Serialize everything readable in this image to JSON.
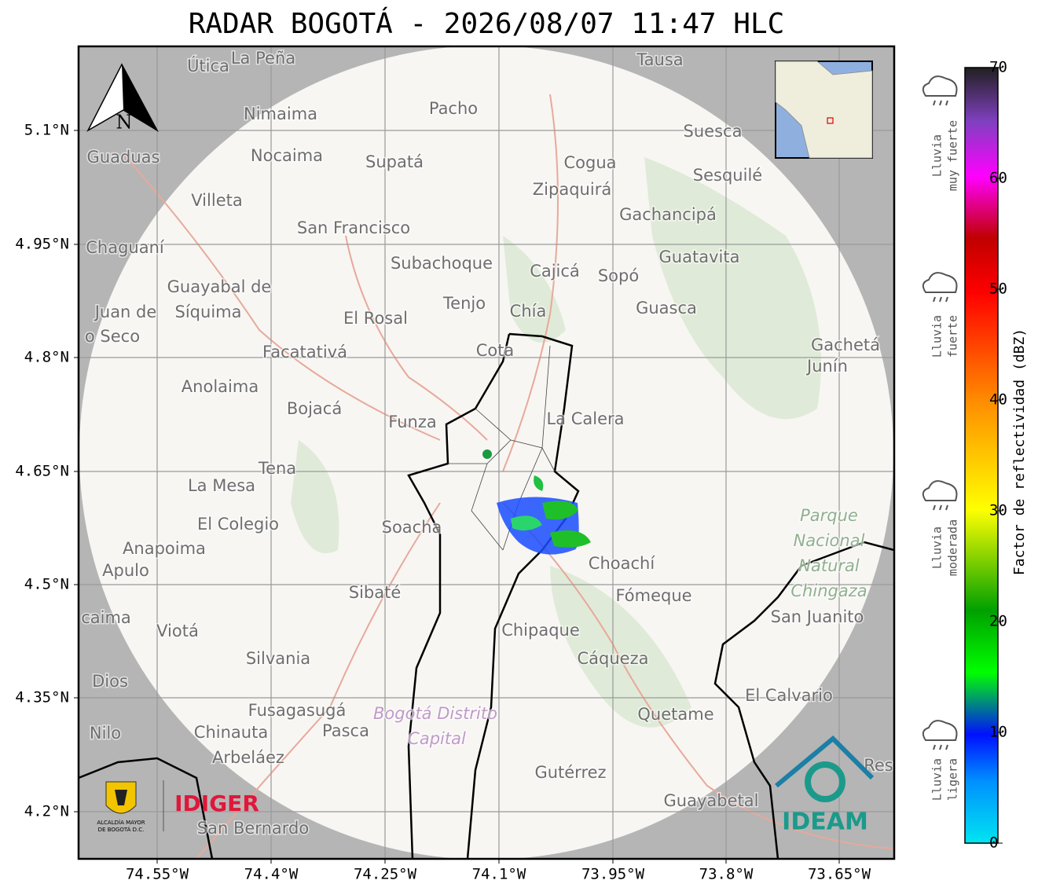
{
  "header": {
    "title": "RADAR BOGOTÁ - 2026/08/07 11:47 HLC"
  },
  "axes": {
    "lat_labels": [
      "5.1°N",
      "4.95°N",
      "4.8°N",
      "4.65°N",
      "4.5°N",
      "4.35°N",
      "4.2°N"
    ],
    "lon_labels": [
      "74.55°W",
      "74.4°W",
      "74.25°W",
      "74.1°W",
      "73.95°W",
      "73.8°W",
      "73.65°W"
    ]
  },
  "north_arrow": "N",
  "places": [
    "Útica",
    "La Peña",
    "Tausa",
    "Pacho",
    "Nimaima",
    "Suesca",
    "Guaduas",
    "Nocaima",
    "Supatá",
    "Cogua",
    "Sesquilé",
    "Zipaquirá",
    "Villeta",
    "Gachancipá",
    "San Francisco",
    "Chaguaní",
    "Guatavita",
    "Subachoque",
    "Cajicá",
    "Sopó",
    "Guayabal de",
    "Síquima",
    "Juan de",
    "Tenjo",
    "Chía",
    "Guasca",
    "El Rosal",
    "o Seco",
    "Facatativá",
    "Gachetá",
    "Junín",
    "Cota",
    "Anolaima",
    "Bojacá",
    "Funza",
    "La Calera",
    "Tena",
    "La Mesa",
    "El Colegio",
    "Soacha",
    "Anapoima",
    "Apulo",
    "Choachí",
    "Sibaté",
    "Fómeque",
    "San Juanito",
    "caima",
    "Viotá",
    "Chipaque",
    "Silvania",
    "Cáqueza",
    "Dios",
    "El Calvario",
    "Fusagasugá",
    "Quetame",
    "Nilo",
    "Chinauta",
    "Pasca",
    "Arbeláez",
    "Gutérrez",
    "Res",
    "Guayabetal",
    "San Bernardo"
  ],
  "park_label": [
    "Parque",
    "Nacional",
    "Natural",
    "Chingaza"
  ],
  "region_label": [
    "Bogotá Distrito",
    "Capital"
  ],
  "logos": {
    "alcaldia": [
      "ALCALDÍA MAYOR",
      "DE BOGOTÁ D.C."
    ],
    "idiger": "IDIGER",
    "ideam": "IDEAM"
  },
  "colorbar": {
    "label": "Factor de reflectividad (dBZ)",
    "range": [
      0,
      70
    ],
    "ticks": [
      0,
      10,
      20,
      30,
      40,
      50,
      60,
      70
    ]
  },
  "legend": [
    {
      "lines": [
        "Lluvia",
        "muy fuerte"
      ]
    },
    {
      "lines": [
        "Lluvia",
        "fuerte"
      ]
    },
    {
      "lines": [
        "Lluvia",
        "moderada"
      ]
    },
    {
      "lines": [
        "Lluvia",
        "ligera"
      ]
    }
  ]
}
